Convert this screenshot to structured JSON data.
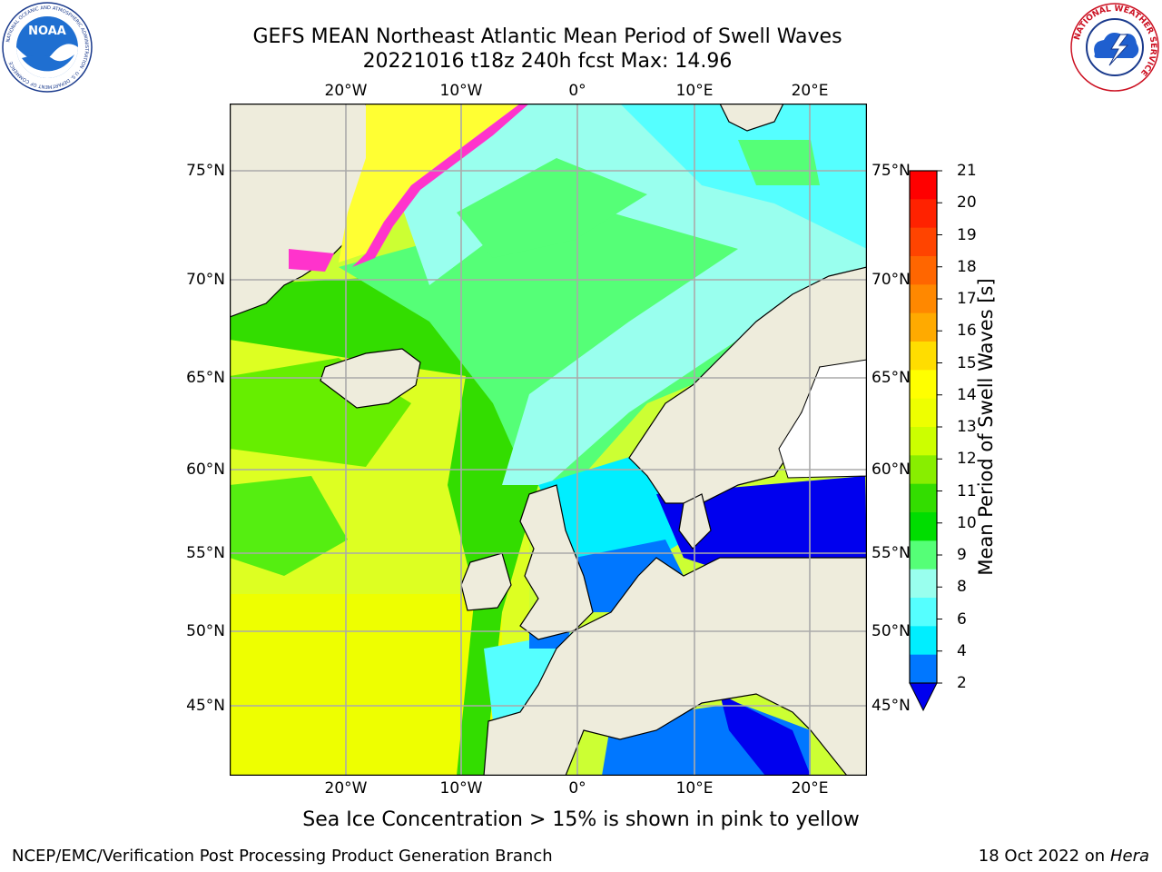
{
  "header": {
    "title_line1": "GEFS MEAN Northeast Atlantic Mean Period of Swell Waves",
    "title_line2": "20221016 t18z 240h fcst   Max: 14.96"
  },
  "logos": {
    "noaa": {
      "text": "NOAA",
      "ring_text": "NATIONAL OCEANIC AND ATMOSPHERIC ADMINISTRATION · U.S. DEPARTMENT OF COMMERCE"
    },
    "nws": {
      "ring_text": "NATIONAL WEATHER SERVICE"
    }
  },
  "map": {
    "lon_labels": [
      "20°W",
      "10°W",
      "0°",
      "10°E",
      "20°E"
    ],
    "lat_labels": [
      "75°N",
      "70°N",
      "65°N",
      "60°N",
      "55°N",
      "50°N",
      "45°N"
    ],
    "colors": {
      "land": "#eeecdc",
      "coast": "#000000",
      "grid": "#aaaaaa",
      "ice_high": "#ffff33",
      "ice_low": "#ff33cc"
    }
  },
  "colorbar": {
    "label": "Mean Period of Swell Waves [s]",
    "ticks": [
      "21",
      "20",
      "19",
      "18",
      "17",
      "16",
      "15",
      "14",
      "13",
      "12",
      "11",
      "10",
      "9",
      "8",
      "6",
      "4",
      "2"
    ],
    "colors": [
      "#ff0000",
      "#ff2200",
      "#ff4400",
      "#ff6600",
      "#ff8800",
      "#ffaa00",
      "#ffdd00",
      "#ffff00",
      "#eeff00",
      "#ccff00",
      "#88ee00",
      "#33dd00",
      "#00dd00",
      "#55ff77",
      "#99ffee",
      "#55ffff",
      "#00eeff",
      "#0077ff"
    ],
    "extend_color": "#0000ee"
  },
  "caption": "Sea Ice Concentration > 15% is shown in pink to yellow",
  "footer": {
    "left": "NCEP/EMC/Verification Post Processing Product Generation Branch",
    "right_prefix": "18 Oct 2022 on ",
    "right_host": "Hera"
  }
}
